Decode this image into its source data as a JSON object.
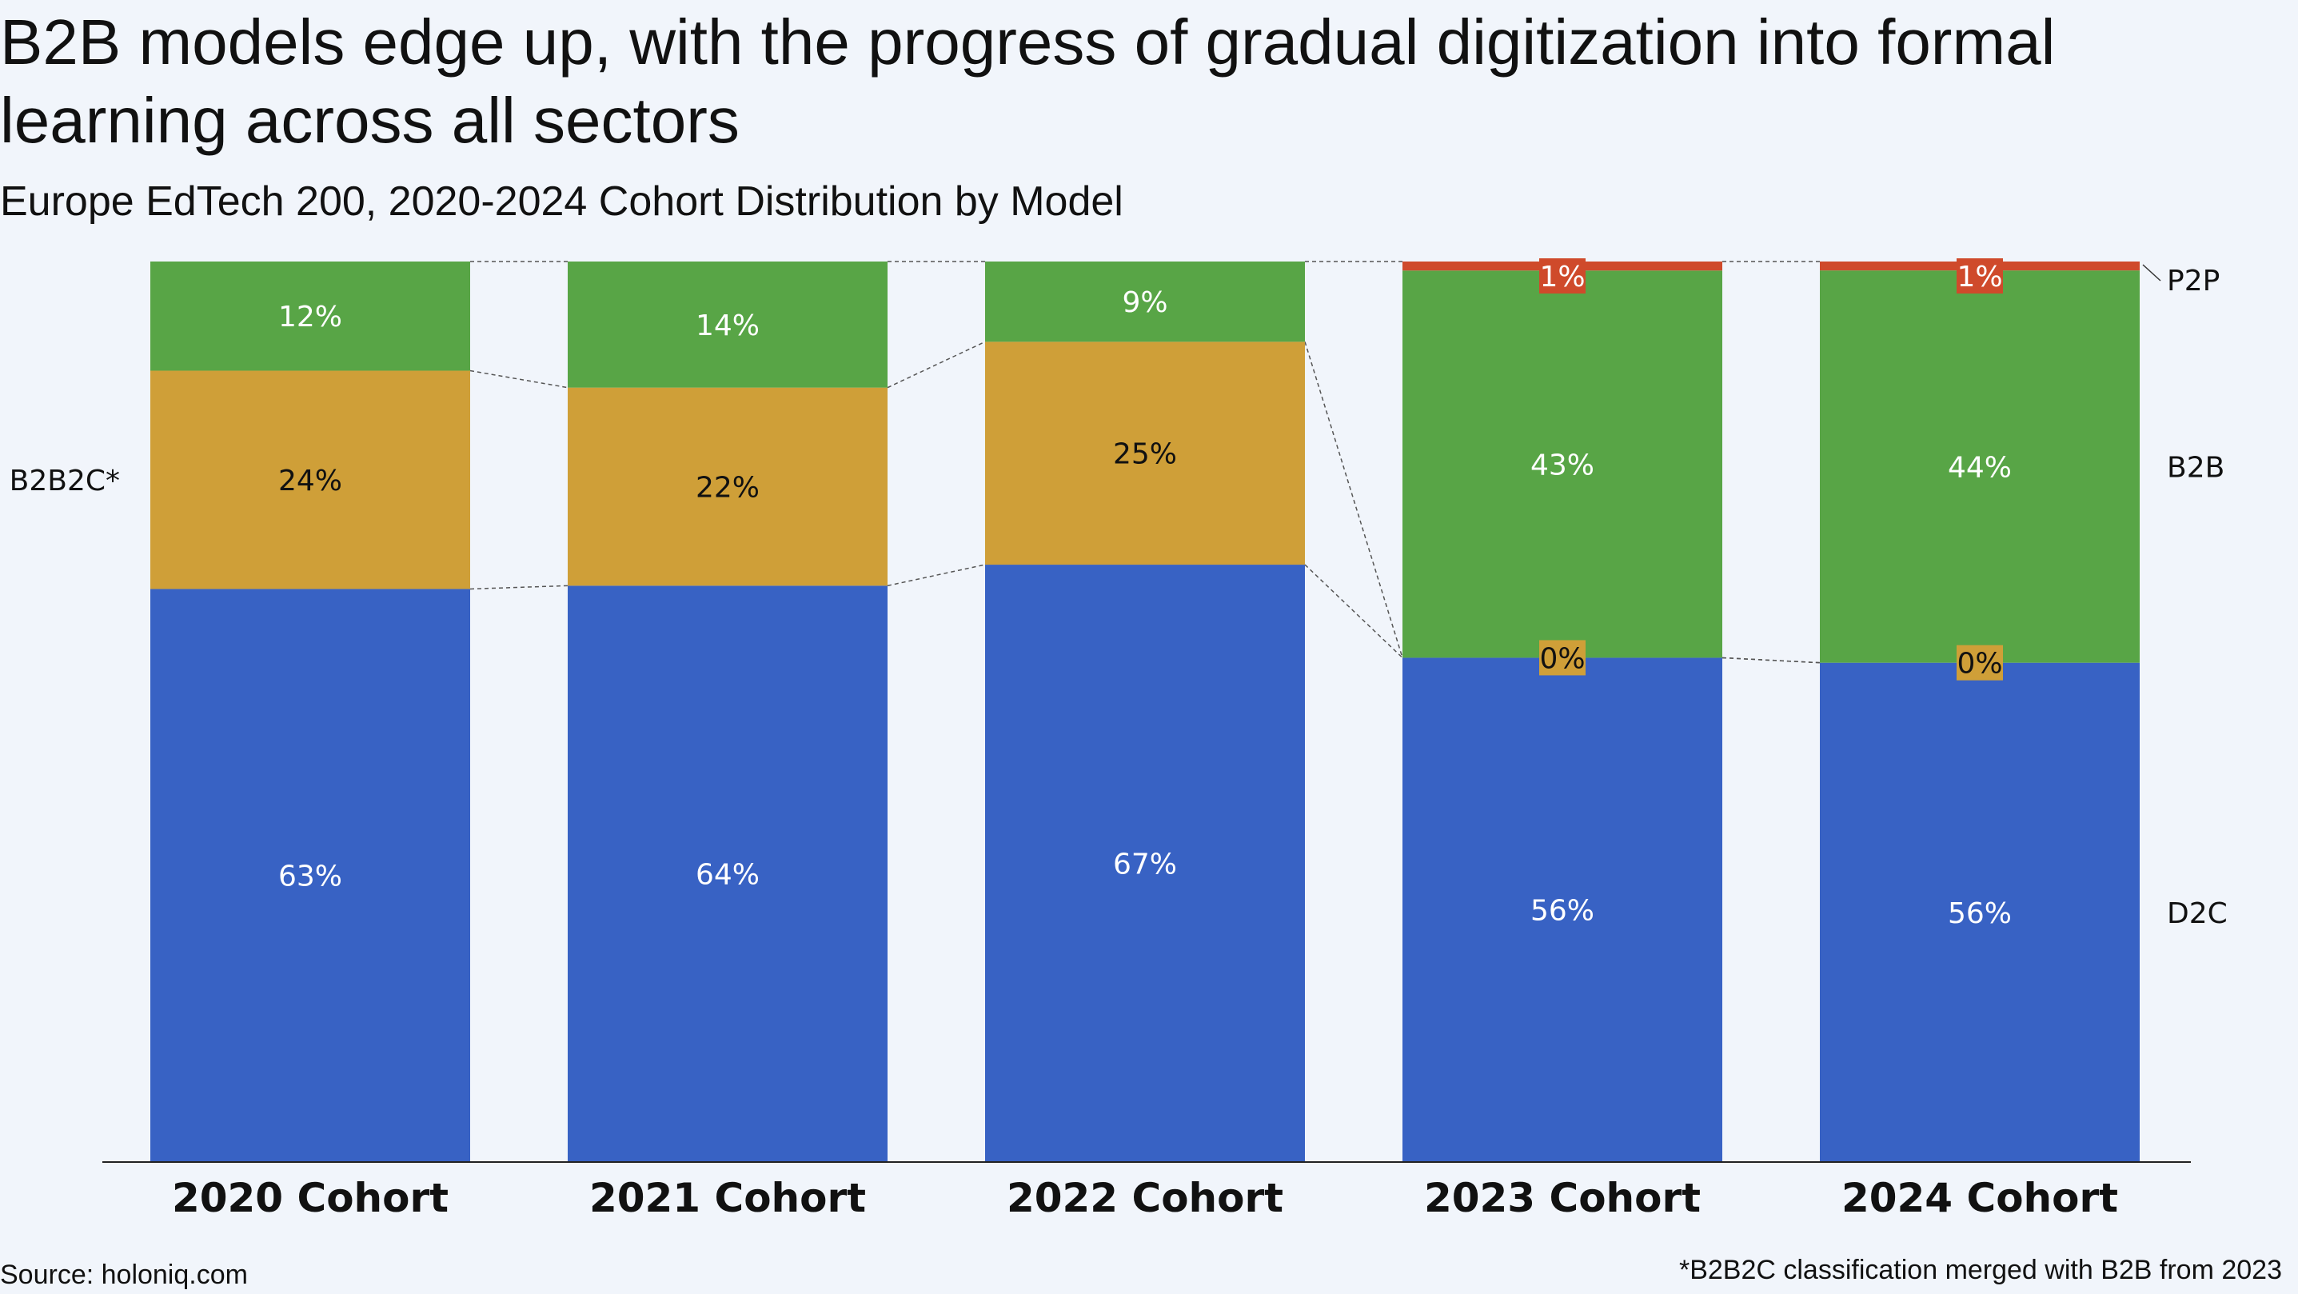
{
  "title": "B2B models edge up, with the progress of gradual digitization into formal learning across all sectors",
  "subtitle": "Europe EdTech 200, 2020-2024 Cohort Distribution by Model",
  "source": "Source: holoniq.com",
  "footnote": "*B2B2C classification merged with B2B from 2023",
  "colors": {
    "background": "#f1f5fb",
    "D2C": "#3862c4",
    "B2B2C": "#cf9f38",
    "B2B": "#58a546",
    "P2P": "#cf4a2b",
    "connector": "#555555",
    "axis": "#222222"
  },
  "chart_data": {
    "type": "bar",
    "stacked": true,
    "categories": [
      "2020 Cohort",
      "2021 Cohort",
      "2022 Cohort",
      "2023 Cohort",
      "2024 Cohort"
    ],
    "ylim": [
      0,
      100
    ],
    "series": [
      {
        "name": "D2C",
        "values": [
          63,
          64,
          67,
          56,
          56
        ],
        "labels": [
          "63%",
          "64%",
          "67%",
          "56%",
          "56%"
        ]
      },
      {
        "name": "B2B2C*",
        "values": [
          24,
          22,
          25,
          0,
          0
        ],
        "labels": [
          "24%",
          "22%",
          "25%",
          "0%",
          "0%"
        ]
      },
      {
        "name": "B2B",
        "values": [
          12,
          14,
          9,
          43,
          44
        ],
        "labels": [
          "12%",
          "14%",
          "9%",
          "43%",
          "44%"
        ]
      },
      {
        "name": "P2P",
        "values": [
          0,
          0,
          0,
          1,
          1
        ],
        "labels": [
          "",
          "",
          "",
          "1%",
          "1%"
        ]
      }
    ]
  }
}
